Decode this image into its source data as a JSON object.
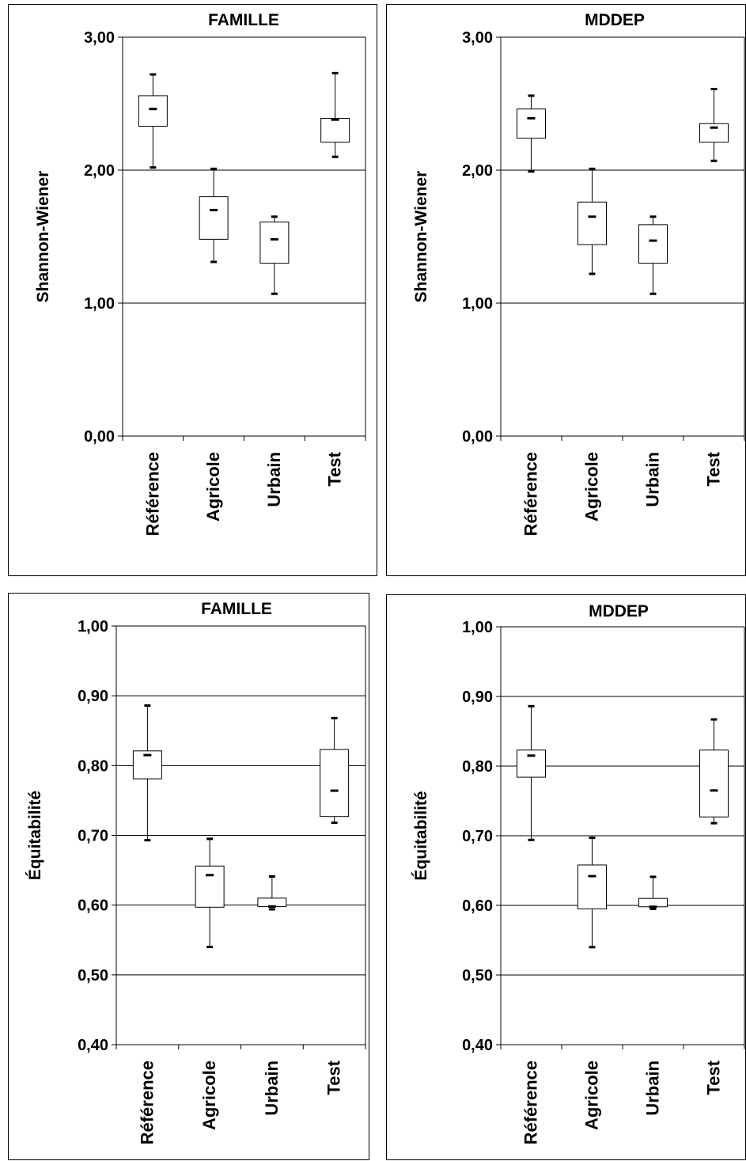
{
  "chart_data": [
    {
      "type": "box",
      "title": "FAMILLE",
      "ylabel": "Shannon-Wiener",
      "ylim": [
        0,
        3
      ],
      "yticks": [
        "0,00",
        "1,00",
        "2,00",
        "3,00"
      ],
      "ytick_values": [
        0,
        1,
        2,
        3
      ],
      "gridlines": [
        1,
        2
      ],
      "categories": [
        "Référence",
        "Agricole",
        "Urbain",
        "Test"
      ],
      "boxes": [
        {
          "whisker_low": 2.02,
          "q1": 2.33,
          "median": 2.46,
          "q3": 2.56,
          "whisker_high": 2.72
        },
        {
          "whisker_low": 1.31,
          "q1": 1.48,
          "median": 1.7,
          "q3": 1.8,
          "whisker_high": 2.01
        },
        {
          "whisker_low": 1.07,
          "q1": 1.3,
          "median": 1.48,
          "q3": 1.61,
          "whisker_high": 1.65
        },
        {
          "whisker_low": 2.1,
          "q1": 2.21,
          "median": 2.38,
          "q3": 2.39,
          "whisker_high": 2.73
        }
      ]
    },
    {
      "type": "box",
      "title": "MDDEP",
      "ylabel": "Shannon-Wiener",
      "ylim": [
        0,
        3
      ],
      "yticks": [
        "0,00",
        "1,00",
        "2,00",
        "3,00"
      ],
      "ytick_values": [
        0,
        1,
        2,
        3
      ],
      "gridlines": [
        1,
        2
      ],
      "categories": [
        "Référence",
        "Agricole",
        "Urbain",
        "Test"
      ],
      "boxes": [
        {
          "whisker_low": 1.99,
          "q1": 2.24,
          "median": 2.39,
          "q3": 2.46,
          "whisker_high": 2.56
        },
        {
          "whisker_low": 1.22,
          "q1": 1.44,
          "median": 1.65,
          "q3": 1.76,
          "whisker_high": 2.01
        },
        {
          "whisker_low": 1.07,
          "q1": 1.3,
          "median": 1.47,
          "q3": 1.59,
          "whisker_high": 1.65
        },
        {
          "whisker_low": 2.07,
          "q1": 2.21,
          "median": 2.32,
          "q3": 2.35,
          "whisker_high": 2.61
        }
      ]
    },
    {
      "type": "box",
      "title": "FAMILLE",
      "ylabel": "Équitabilité",
      "ylim": [
        0.4,
        1.0
      ],
      "yticks": [
        "0,40",
        "0,50",
        "0,60",
        "0,70",
        "0,80",
        "0,90",
        "1,00"
      ],
      "ytick_values": [
        0.4,
        0.5,
        0.6,
        0.7,
        0.8,
        0.9,
        1.0
      ],
      "gridlines": [
        0.5,
        0.6,
        0.7,
        0.8,
        0.9
      ],
      "categories": [
        "Référence",
        "Agricole",
        "Urbain",
        "Test"
      ],
      "boxes": [
        {
          "whisker_low": 0.693,
          "q1": 0.781,
          "median": 0.815,
          "q3": 0.821,
          "whisker_high": 0.886
        },
        {
          "whisker_low": 0.54,
          "q1": 0.597,
          "median": 0.643,
          "q3": 0.656,
          "whisker_high": 0.695
        },
        {
          "whisker_low": 0.594,
          "q1": 0.598,
          "median": 0.598,
          "q3": 0.61,
          "whisker_high": 0.641
        },
        {
          "whisker_low": 0.718,
          "q1": 0.727,
          "median": 0.764,
          "q3": 0.823,
          "whisker_high": 0.868
        }
      ]
    },
    {
      "type": "box",
      "title": "MDDEP",
      "ylabel": "Équitabilité",
      "ylim": [
        0.4,
        1.0
      ],
      "yticks": [
        "0,40",
        "0,50",
        "0,60",
        "0,70",
        "0,80",
        "0,90",
        "1,00"
      ],
      "ytick_values": [
        0.4,
        0.5,
        0.6,
        0.7,
        0.8,
        0.9,
        1.0
      ],
      "gridlines": [
        0.5,
        0.6,
        0.7,
        0.8,
        0.9
      ],
      "categories": [
        "Référence",
        "Agricole",
        "Urbain",
        "Test"
      ],
      "boxes": [
        {
          "whisker_low": 0.694,
          "q1": 0.784,
          "median": 0.815,
          "q3": 0.823,
          "whisker_high": 0.886
        },
        {
          "whisker_low": 0.54,
          "q1": 0.595,
          "median": 0.642,
          "q3": 0.658,
          "whisker_high": 0.697
        },
        {
          "whisker_low": 0.595,
          "q1": 0.598,
          "median": 0.598,
          "q3": 0.61,
          "whisker_high": 0.641
        },
        {
          "whisker_low": 0.718,
          "q1": 0.727,
          "median": 0.765,
          "q3": 0.823,
          "whisker_high": 0.867
        }
      ]
    }
  ]
}
